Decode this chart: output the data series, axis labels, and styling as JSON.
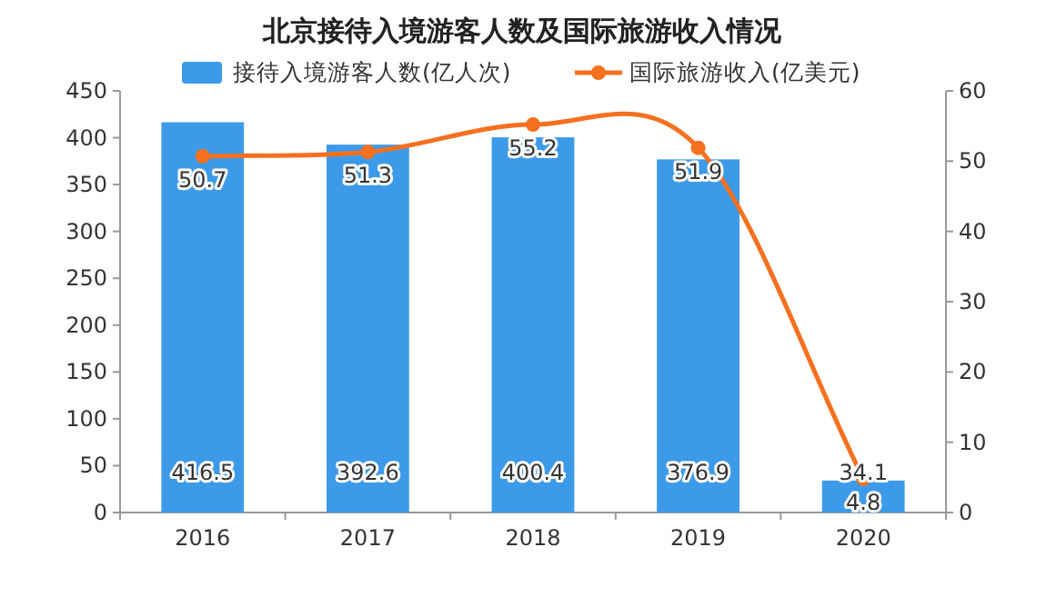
{
  "chart_data": {
    "type": "bar",
    "title": "北京接待入境游客人数及国际旅游收入情况",
    "categories": [
      "2016",
      "2017",
      "2018",
      "2019",
      "2020"
    ],
    "series": [
      {
        "name": "接待入境游客人数(亿人次)",
        "color": "#3d9ae8",
        "values": [
          416.5,
          392.6,
          400.4,
          376.9,
          34.1
        ]
      },
      {
        "name": "国际旅游收入(亿美元)",
        "type": "line",
        "axis": "y2",
        "color": "#f5701f",
        "marker": "circle",
        "values": [
          50.7,
          51.3,
          55.2,
          51.9,
          4.8
        ]
      }
    ],
    "ylim": [
      0,
      450
    ],
    "yticks": [
      0,
      50,
      100,
      150,
      200,
      250,
      300,
      350,
      400,
      450
    ],
    "y2lim": [
      0,
      60
    ],
    "y2ticks": [
      0,
      10,
      20,
      30,
      40,
      50,
      60
    ],
    "data_labels": true,
    "legend": "top"
  }
}
